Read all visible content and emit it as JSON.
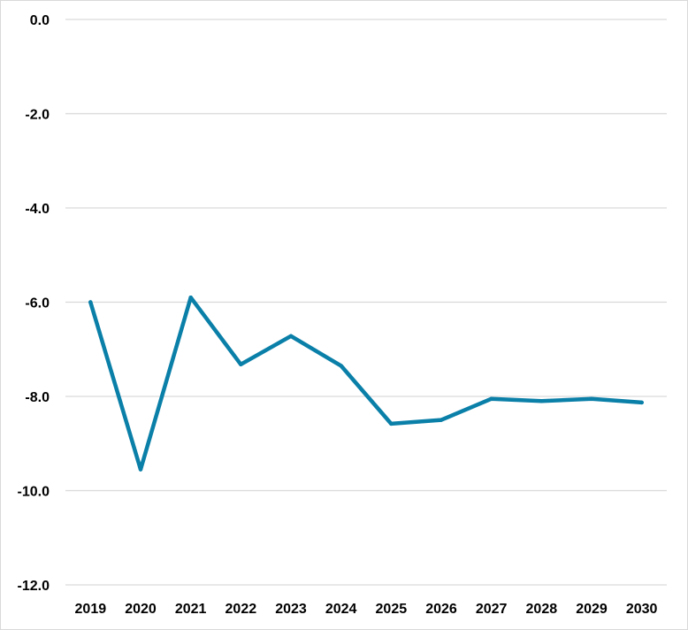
{
  "chart_data": {
    "type": "line",
    "title": "",
    "xlabel": "",
    "ylabel": "",
    "categories": [
      "2019",
      "2020",
      "2021",
      "2022",
      "2023",
      "2024",
      "2025",
      "2026",
      "2027",
      "2028",
      "2029",
      "2030"
    ],
    "series": [
      {
        "values": [
          -6.0,
          -9.55,
          -5.9,
          -7.32,
          -6.72,
          -7.35,
          -8.58,
          -8.5,
          -8.05,
          -8.1,
          -8.05,
          -8.13
        ]
      }
    ],
    "ylim": [
      -12,
      0
    ],
    "yticks": [
      0,
      -2,
      -4,
      -6,
      -8,
      -10,
      -12
    ],
    "ytick_labels": [
      "0.0",
      "-2.0",
      "-4.0",
      "-6.0",
      "-8.0",
      "-10.0",
      "-12.0"
    ],
    "grid": true,
    "legend": "none",
    "colors": {
      "line": "#0a7fa8",
      "grid": "#d9d9d9"
    }
  }
}
